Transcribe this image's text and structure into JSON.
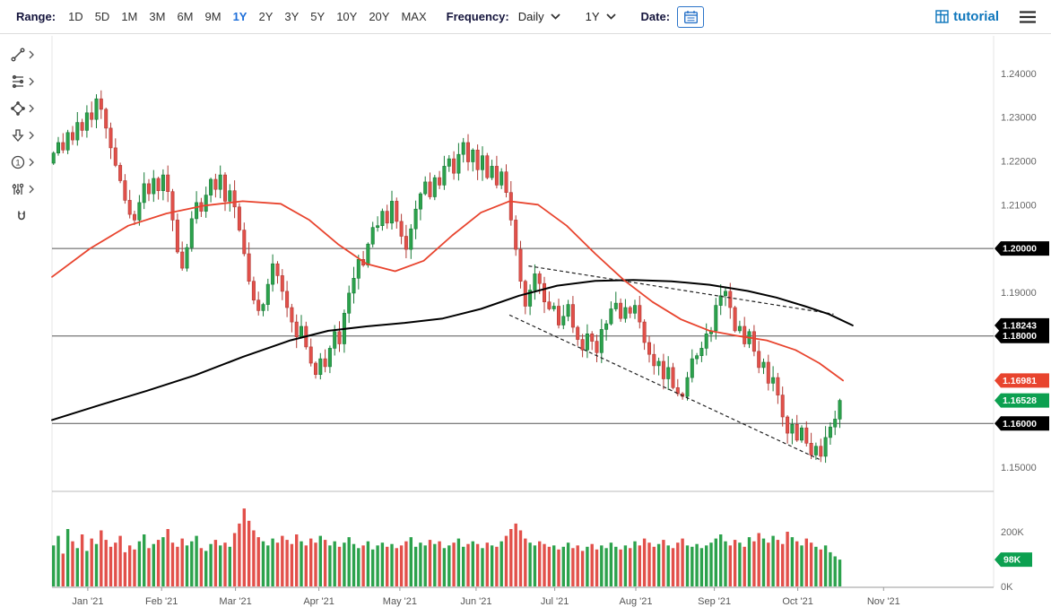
{
  "toolbar": {
    "range_label": "Range:",
    "ranges": [
      "1D",
      "5D",
      "1M",
      "3M",
      "6M",
      "9M",
      "1Y",
      "2Y",
      "3Y",
      "5Y",
      "10Y",
      "20Y",
      "MAX"
    ],
    "selected_range": "1Y",
    "frequency_label": "Frequency:",
    "frequency_value": "Daily",
    "period_value": "1Y",
    "date_label": "Date:",
    "brand": "tutorial"
  },
  "icons": {
    "annotation_glyph": "1",
    "tools": [
      "trendline-icon",
      "fibonacci-icon",
      "shapes-icon",
      "arrow-down-icon",
      "annotation-number-icon",
      "indicators-icon",
      "magnet-icon"
    ],
    "toolbar_icons": [
      "calendar-icon",
      "grid-icon",
      "hamburger-icon",
      "chevron-down-icon"
    ]
  },
  "colors": {
    "accent_blue": "#1e6fd9",
    "brand_blue": "#0e76bc",
    "up": "#2ca24c",
    "up_border": "#157a35",
    "down": "#e2504a",
    "down_border": "#b03a34",
    "badge_black": "#000000",
    "badge_red": "#e8442e",
    "badge_green": "#0ca050"
  },
  "chart_data": {
    "type": "candlestick_with_volume",
    "frequency": "Daily",
    "range": "1Y",
    "ylim": [
      1.149,
      1.249
    ],
    "y_ticks": [
      "1.24000",
      "1.23000",
      "1.22000",
      "1.21000",
      "1.20000",
      "1.19000",
      "1.18000",
      "1.17000",
      "1.16000",
      "1.15000"
    ],
    "volume_ticks": [
      {
        "label": "200K",
        "value": 200
      },
      {
        "label": "0K",
        "value": 0
      }
    ],
    "months": [
      {
        "label": "Jan '21",
        "idx": 7.5
      },
      {
        "label": "Feb '21",
        "idx": 23
      },
      {
        "label": "Mar '21",
        "idx": 38.5
      },
      {
        "label": "Apr '21",
        "idx": 56
      },
      {
        "label": "May '21",
        "idx": 73
      },
      {
        "label": "Jun '21",
        "idx": 89
      },
      {
        "label": "Jul '21",
        "idx": 105.5
      },
      {
        "label": "Aug '21",
        "idx": 122.5
      },
      {
        "label": "Sep '21",
        "idx": 139
      },
      {
        "label": "Oct '21",
        "idx": 156.5
      },
      {
        "label": "Nov '21",
        "idx": 174.5
      }
    ],
    "price_lines": [
      1.2,
      1.18,
      1.16
    ],
    "price_line_color": "#555555",
    "first_open": 1.2195,
    "closes": [
      1.2218,
      1.2242,
      1.2225,
      1.2265,
      1.2248,
      1.2288,
      1.227,
      1.231,
      1.2295,
      1.2342,
      1.2318,
      1.2275,
      1.223,
      1.219,
      1.2155,
      1.211,
      1.2078,
      1.2065,
      1.2105,
      1.2148,
      1.2125,
      1.216,
      1.2132,
      1.2168,
      1.213,
      1.2065,
      1.1992,
      1.1955,
      1.2002,
      1.2068,
      1.2105,
      1.2085,
      1.2122,
      1.2158,
      1.2135,
      1.2168,
      1.2108,
      1.2132,
      1.2095,
      1.2042,
      1.1988,
      1.1925,
      1.1882,
      1.1858,
      1.1872,
      1.1918,
      1.1965,
      1.1938,
      1.1902,
      1.1865,
      1.1832,
      1.1798,
      1.1822,
      1.1775,
      1.1738,
      1.1712,
      1.1748,
      1.173,
      1.1772,
      1.181,
      1.1782,
      1.1852,
      1.1898,
      1.1932,
      1.1975,
      1.1962,
      1.201,
      1.2048,
      1.2052,
      1.2085,
      1.2058,
      1.2108,
      1.2062,
      1.2028,
      1.1998,
      1.2045,
      1.209,
      1.2125,
      1.2152,
      1.2118,
      1.2162,
      1.2145,
      1.2188,
      1.2205,
      1.2172,
      1.2215,
      1.2242,
      1.2198,
      1.2225,
      1.218,
      1.2212,
      1.2162,
      1.2188,
      1.2145,
      1.2175,
      1.2128,
      1.2065,
      1.1998,
      1.1925,
      1.1868,
      1.1905,
      1.1942,
      1.192,
      1.1878,
      1.1862,
      1.1868,
      1.1825,
      1.1845,
      1.1872,
      1.182,
      1.1792,
      1.1768,
      1.1805,
      1.1788,
      1.1762,
      1.1815,
      1.1828,
      1.1862,
      1.1875,
      1.184,
      1.1865,
      1.1852,
      1.187,
      1.1832,
      1.1785,
      1.1758,
      1.1732,
      1.1742,
      1.1702,
      1.1728,
      1.1682,
      1.1668,
      1.1662,
      1.1705,
      1.1748,
      1.1755,
      1.1772,
      1.1805,
      1.1812,
      1.187,
      1.1892,
      1.1902,
      1.1865,
      1.1812,
      1.1822,
      1.1782,
      1.181,
      1.1765,
      1.1728,
      1.174,
      1.1692,
      1.1705,
      1.1665,
      1.1615,
      1.1578,
      1.1598,
      1.1562,
      1.159,
      1.1555,
      1.1528,
      1.1548,
      1.1525,
      1.1568,
      1.1592,
      1.161,
      1.16528
    ],
    "volumes": [
      150,
      185,
      120,
      210,
      165,
      140,
      190,
      130,
      175,
      155,
      205,
      170,
      145,
      160,
      185,
      125,
      150,
      135,
      165,
      190,
      140,
      155,
      170,
      180,
      210,
      160,
      145,
      175,
      150,
      165,
      185,
      140,
      130,
      155,
      170,
      150,
      160,
      145,
      195,
      230,
      285,
      240,
      205,
      180,
      165,
      150,
      175,
      160,
      185,
      170,
      155,
      190,
      165,
      150,
      175,
      160,
      185,
      170,
      150,
      165,
      145,
      160,
      180,
      155,
      140,
      150,
      165,
      135,
      150,
      160,
      145,
      155,
      140,
      150,
      165,
      180,
      145,
      160,
      150,
      170,
      155,
      165,
      140,
      150,
      160,
      175,
      145,
      155,
      165,
      155,
      140,
      160,
      150,
      145,
      165,
      185,
      210,
      230,
      205,
      175,
      160,
      150,
      165,
      155,
      145,
      150,
      135,
      145,
      160,
      140,
      150,
      130,
      145,
      155,
      135,
      150,
      140,
      160,
      145,
      135,
      150,
      140,
      165,
      150,
      175,
      160,
      145,
      155,
      170,
      150,
      140,
      160,
      175,
      150,
      145,
      155,
      140,
      150,
      160,
      175,
      190,
      165,
      150,
      170,
      160,
      145,
      180,
      165,
      195,
      175,
      160,
      185,
      170,
      155,
      200,
      180,
      165,
      150,
      175,
      160,
      145,
      135,
      150,
      125,
      110,
      98
    ],
    "ma_short": {
      "color": "#e8442e",
      "last_label": "1.16981",
      "points": [
        [
          0,
          1.1935
        ],
        [
          8,
          1.2
        ],
        [
          16,
          1.2052
        ],
        [
          24,
          1.208
        ],
        [
          32,
          1.2098
        ],
        [
          40,
          1.2108
        ],
        [
          48,
          1.2102
        ],
        [
          54,
          1.2065
        ],
        [
          60,
          1.201
        ],
        [
          66,
          1.1965
        ],
        [
          72,
          1.1948
        ],
        [
          78,
          1.1972
        ],
        [
          84,
          1.203
        ],
        [
          90,
          1.2082
        ],
        [
          96,
          1.2108
        ],
        [
          102,
          1.21
        ],
        [
          108,
          1.2052
        ],
        [
          114,
          1.1988
        ],
        [
          120,
          1.1928
        ],
        [
          126,
          1.1878
        ],
        [
          132,
          1.1838
        ],
        [
          138,
          1.1812
        ],
        [
          144,
          1.18
        ],
        [
          150,
          1.179
        ],
        [
          156,
          1.1768
        ],
        [
          161,
          1.1738
        ],
        [
          166,
          1.16981
        ]
      ]
    },
    "ma_long": {
      "color": "#000000",
      "last_label": "1.18243",
      "points": [
        [
          0,
          1.1608
        ],
        [
          10,
          1.1642
        ],
        [
          20,
          1.1675
        ],
        [
          30,
          1.171
        ],
        [
          40,
          1.1752
        ],
        [
          50,
          1.179
        ],
        [
          58,
          1.1812
        ],
        [
          66,
          1.1822
        ],
        [
          74,
          1.183
        ],
        [
          82,
          1.184
        ],
        [
          90,
          1.1862
        ],
        [
          98,
          1.1892
        ],
        [
          106,
          1.1915
        ],
        [
          114,
          1.1926
        ],
        [
          122,
          1.1928
        ],
        [
          130,
          1.1925
        ],
        [
          138,
          1.1917
        ],
        [
          146,
          1.1903
        ],
        [
          152,
          1.1888
        ],
        [
          158,
          1.1868
        ],
        [
          163,
          1.185
        ],
        [
          168,
          1.18243
        ]
      ]
    },
    "trendlines": [
      {
        "from": [
          100,
          1.196
        ],
        "to": [
          164,
          1.185
        ],
        "color": "#222222"
      },
      {
        "from": [
          96,
          1.1848
        ],
        "to": [
          161,
          1.1518
        ],
        "color": "#222222"
      }
    ],
    "axis_badges": [
      {
        "label": "1.20000",
        "price": 1.2,
        "color": "#000000"
      },
      {
        "label": "1.18000",
        "price": 1.18,
        "color": "#000000"
      },
      {
        "label": "1.18243",
        "price": 1.18243,
        "color": "#000000"
      },
      {
        "label": "1.16000",
        "price": 1.16,
        "color": "#000000"
      },
      {
        "label": "1.16981",
        "price": 1.16981,
        "color": "#e8442e"
      },
      {
        "label": "1.16528",
        "price": 1.16528,
        "color": "#0ca050"
      }
    ],
    "volume_badge": {
      "label": "98K",
      "value": 98,
      "color": "#0ca050"
    }
  }
}
